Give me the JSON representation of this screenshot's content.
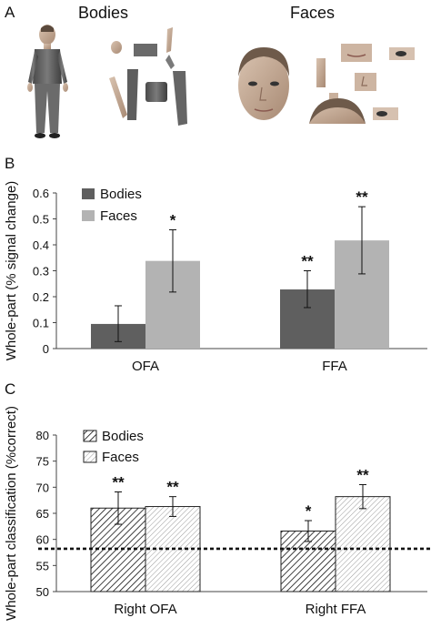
{
  "panel_a": {
    "letter": "A",
    "bodies_title": "Bodies",
    "faces_title": "Faces"
  },
  "chart_data": [
    {
      "panel": "B",
      "type": "bar",
      "ylabel": "Whole-part (% signal change)",
      "categories": [
        "OFA",
        "FFA"
      ],
      "ylim": [
        0,
        0.6
      ],
      "yticks": [
        "0",
        "0.1",
        "0.2",
        "0.3",
        "0.4",
        "0.5",
        "0.6"
      ],
      "legend_position": "top-left",
      "series": [
        {
          "name": "Bodies",
          "values": [
            0.095,
            0.228
          ],
          "err_low": [
            0.027,
            0.158
          ],
          "err_high": [
            0.165,
            0.3
          ],
          "sig": [
            "",
            "**"
          ],
          "color": "#5f5f5f"
        },
        {
          "name": "Faces",
          "values": [
            0.338,
            0.417
          ],
          "err_low": [
            0.218,
            0.288
          ],
          "err_high": [
            0.458,
            0.547
          ],
          "sig": [
            "*",
            "**"
          ],
          "color": "#b3b3b3"
        }
      ]
    },
    {
      "panel": "C",
      "type": "bar",
      "ylabel": "Whole-part classification (%correct)",
      "categories": [
        "Right OFA",
        "Right FFA"
      ],
      "ylim": [
        50,
        80
      ],
      "yticks": [
        "50",
        "55",
        "60",
        "65",
        "70",
        "75",
        "80"
      ],
      "chance_level": 58.2,
      "legend_position": "top-left",
      "series": [
        {
          "name": "Bodies",
          "values": [
            66.0,
            61.6
          ],
          "err_low": [
            62.9,
            59.6
          ],
          "err_high": [
            69.1,
            63.6
          ],
          "sig": [
            "**",
            "*"
          ],
          "pattern": "dense-hatch"
        },
        {
          "name": "Faces",
          "values": [
            66.3,
            68.2
          ],
          "err_low": [
            64.4,
            65.9
          ],
          "err_high": [
            68.2,
            70.5
          ],
          "sig": [
            "**",
            "**"
          ],
          "pattern": "light-hatch"
        }
      ]
    }
  ]
}
